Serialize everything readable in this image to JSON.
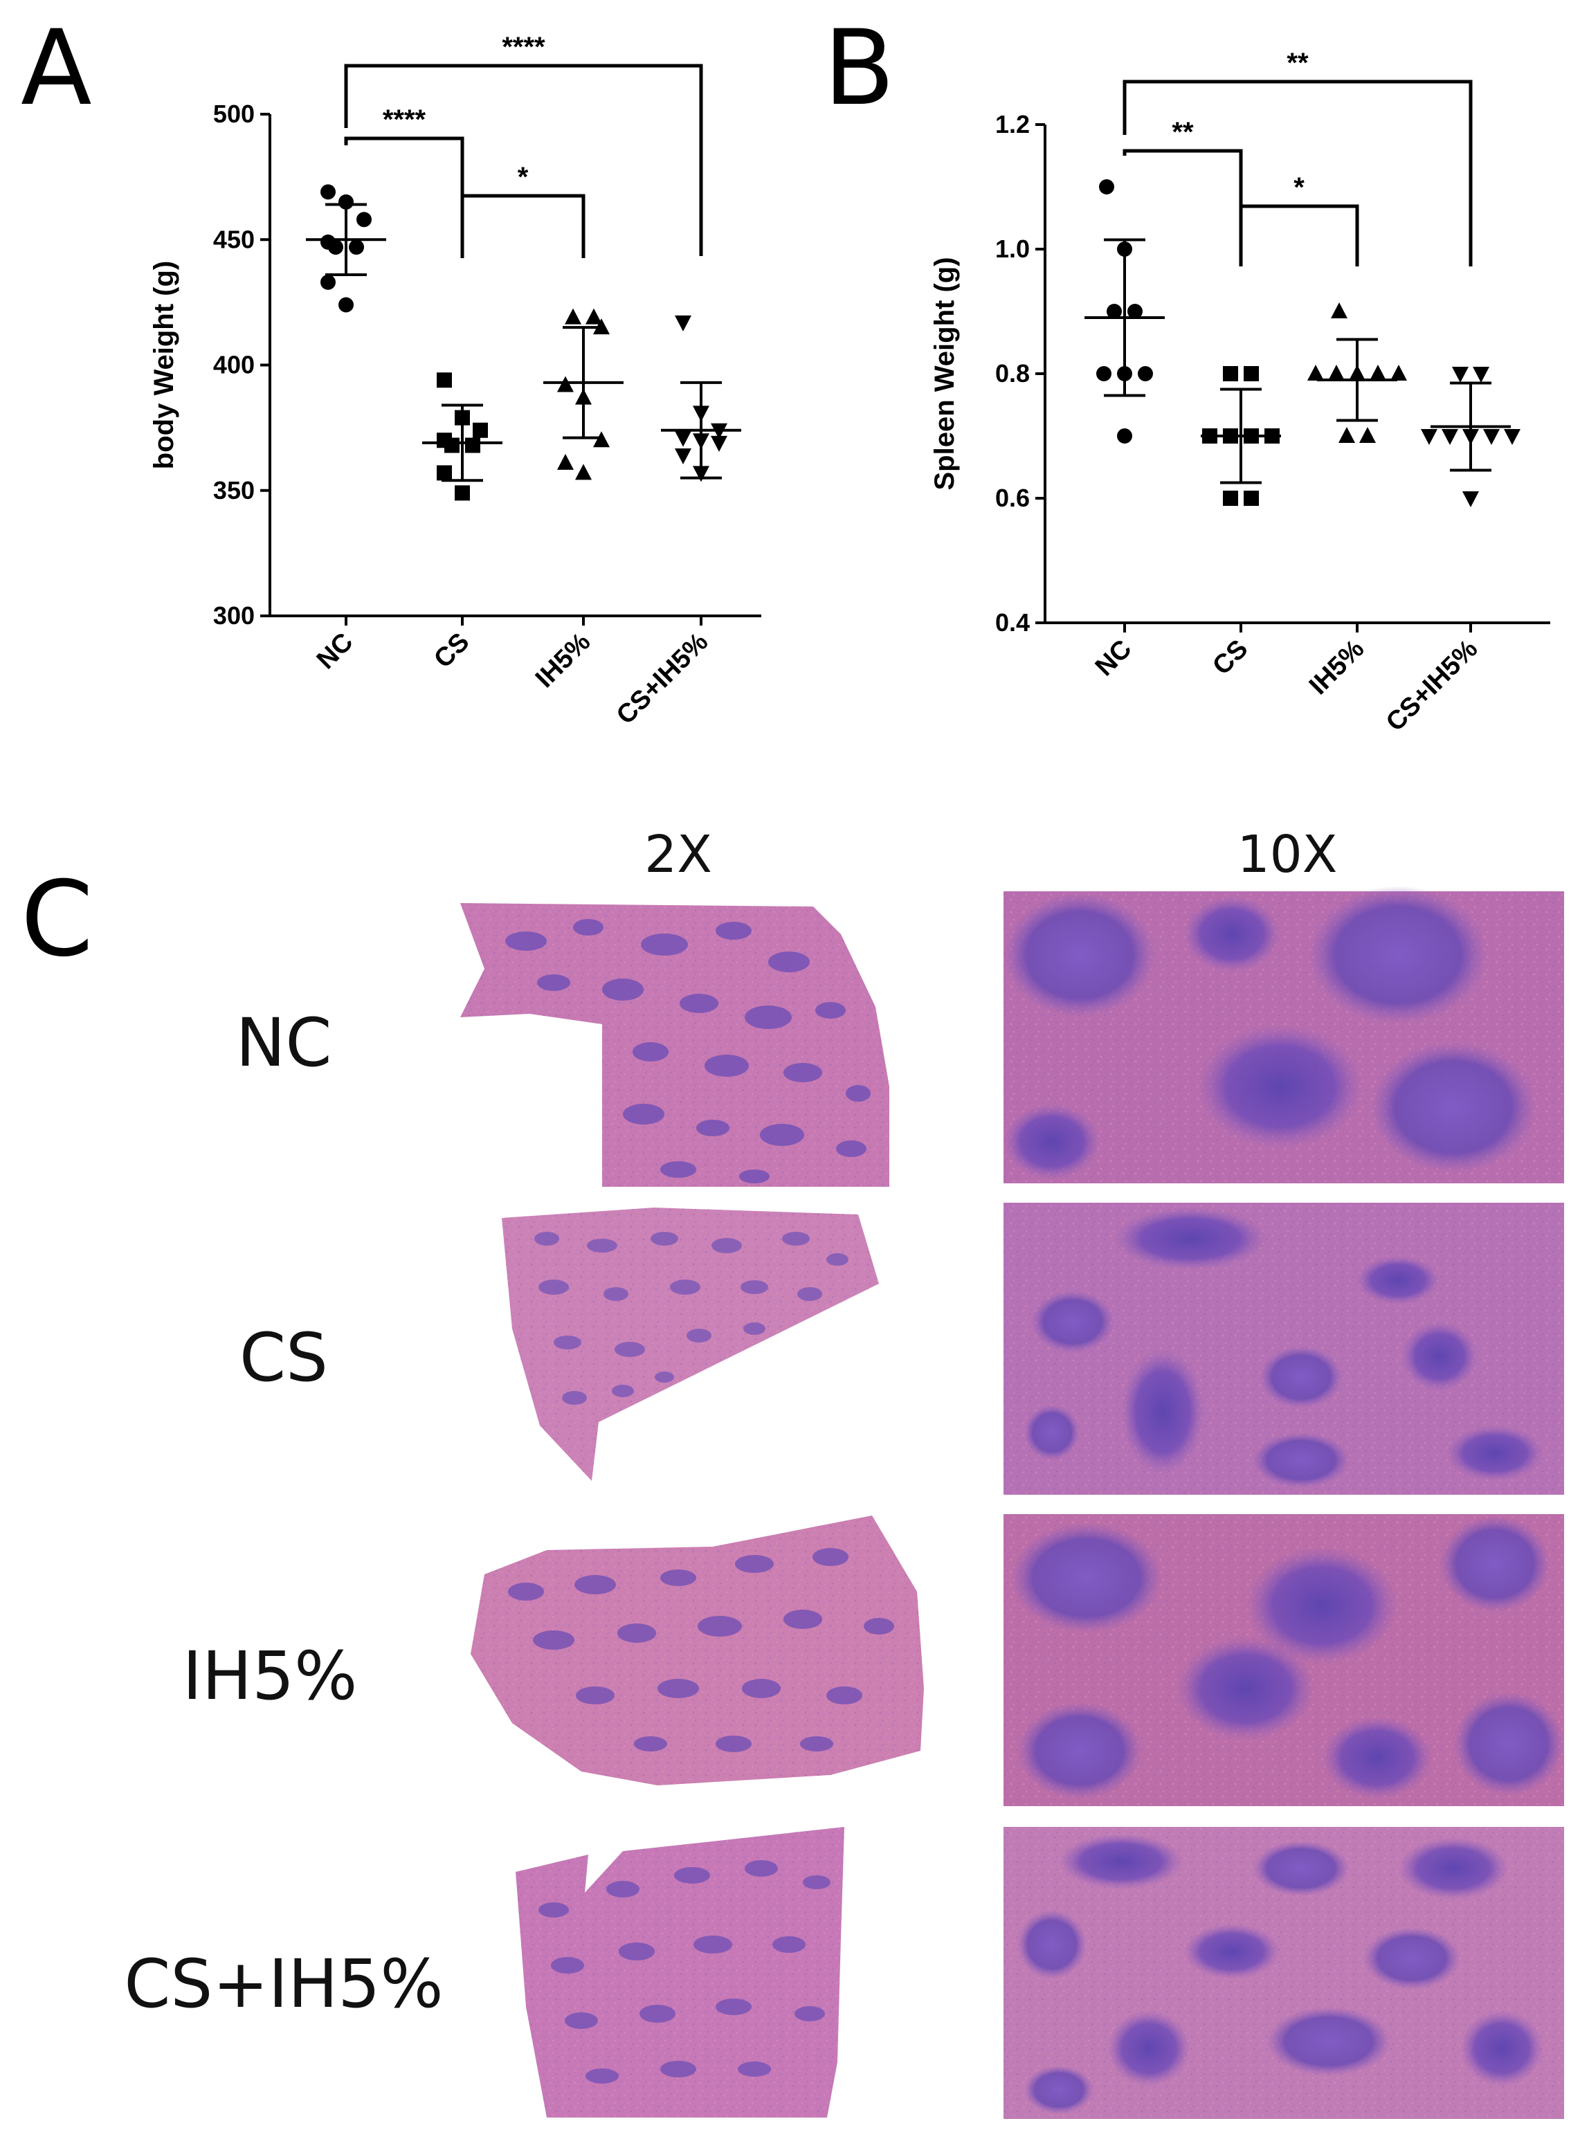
{
  "panels": {
    "a_letter": "A",
    "b_letter": "B",
    "c_letter": "C"
  },
  "chart_data": [
    {
      "type": "scatter",
      "panel": "A",
      "title": "",
      "xlabel": "",
      "ylabel": "body Weight (g)",
      "ylim": [
        300,
        500
      ],
      "yticks": [
        300,
        350,
        400,
        450,
        500
      ],
      "categories": [
        "NC",
        "CS",
        "IH5%",
        "CS+IH5%"
      ],
      "markers": [
        "circle",
        "square",
        "triangle-up",
        "triangle-down"
      ],
      "points": [
        [
          469,
          465,
          458,
          449,
          447,
          447,
          433,
          424
        ],
        [
          394,
          379,
          374,
          370,
          368,
          368,
          357,
          349
        ],
        [
          419,
          419,
          415,
          392,
          387,
          370,
          361,
          357
        ],
        [
          417,
          381,
          374,
          371,
          370,
          369,
          364,
          357
        ]
      ],
      "mean": [
        450,
        369,
        393,
        374
      ],
      "sd": [
        14,
        15,
        22,
        19
      ],
      "significance": [
        {
          "from": "NC",
          "to": "CS+IH5%",
          "label": "****"
        },
        {
          "from": "NC",
          "to": "CS",
          "label": "****"
        },
        {
          "from": "CS",
          "to": "IH5%",
          "label": "*"
        }
      ]
    },
    {
      "type": "scatter",
      "panel": "B",
      "title": "",
      "xlabel": "",
      "ylabel": "Spleen Weight (g)",
      "ylim": [
        0.4,
        1.2
      ],
      "yticks": [
        "0.4",
        "0.6",
        "0.8",
        "1.0",
        "1.2"
      ],
      "categories": [
        "NC",
        "CS",
        "IH5%",
        "CS+IH5%"
      ],
      "markers": [
        "circle",
        "square",
        "triangle-up",
        "triangle-down"
      ],
      "points": [
        [
          1.1,
          1.0,
          0.9,
          0.9,
          0.8,
          0.8,
          0.8,
          0.7
        ],
        [
          0.8,
          0.8,
          0.7,
          0.7,
          0.7,
          0.7,
          0.6,
          0.6
        ],
        [
          0.9,
          0.8,
          0.8,
          0.8,
          0.8,
          0.8,
          0.7,
          0.7
        ],
        [
          0.8,
          0.8,
          0.7,
          0.7,
          0.7,
          0.7,
          0.7,
          0.6
        ]
      ],
      "mean": [
        0.89,
        0.7,
        0.79,
        0.715
      ],
      "sd": [
        0.125,
        0.075,
        0.065,
        0.07
      ],
      "significance": [
        {
          "from": "NC",
          "to": "CS+IH5%",
          "label": "**"
        },
        {
          "from": "NC",
          "to": "CS",
          "label": "**"
        },
        {
          "from": "CS",
          "to": "IH5%",
          "label": "*"
        }
      ]
    }
  ],
  "histology": {
    "columns": [
      "2X",
      "10X"
    ],
    "rows": [
      "NC",
      "CS",
      "IH5%",
      "CS+IH5%"
    ],
    "colors": {
      "tissue": "#c46ea8",
      "follicle": "#6a4bb4",
      "background_10x": "#b36aae"
    }
  }
}
